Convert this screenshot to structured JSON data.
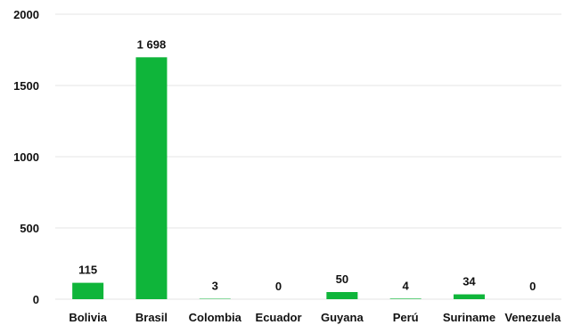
{
  "chart_data": {
    "type": "bar",
    "title": "",
    "xlabel": "",
    "ylabel": "",
    "categories": [
      "Bolivia",
      "Brasil",
      "Colombia",
      "Ecuador",
      "Guyana",
      "Perú",
      "Suriname",
      "Venezuela"
    ],
    "values": [
      115,
      1698,
      3,
      0,
      50,
      4,
      34,
      0
    ],
    "value_labels": [
      "115",
      "1 698",
      "3",
      "0",
      "50",
      "4",
      "34",
      "0"
    ],
    "ylim": [
      0,
      2000
    ],
    "yticks": [
      0,
      500,
      1000,
      1500,
      2000
    ],
    "ytick_labels": [
      "0",
      "500",
      "1000",
      "1500",
      "2000"
    ],
    "grid": true,
    "legend": "none",
    "bar_color": "#0fb53a",
    "grid_color": "#e6e6e6"
  }
}
